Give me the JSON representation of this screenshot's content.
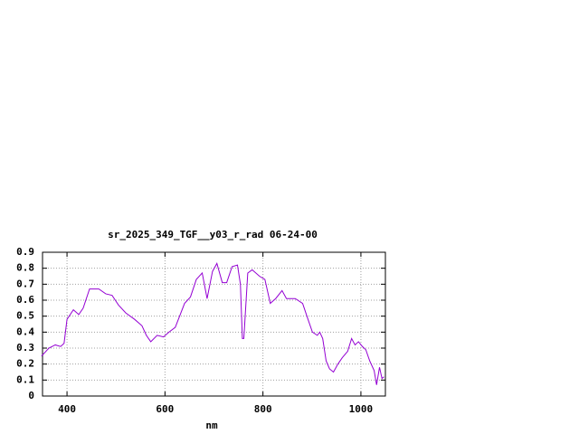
{
  "chart_data": {
    "type": "line",
    "title": "sr_2025_349_TGF__y03_r_rad 06-24-00",
    "x_label": "nm",
    "x": [
      348,
      363,
      376,
      387,
      394,
      400,
      413,
      424,
      433,
      446,
      465,
      479,
      492,
      505,
      520,
      538,
      553,
      562,
      571,
      584,
      597,
      608,
      621,
      640,
      652,
      664,
      676,
      686,
      697,
      706,
      717,
      726,
      737,
      748,
      754,
      758,
      761,
      769,
      778,
      793,
      804,
      815,
      826,
      839,
      848,
      866,
      881,
      892,
      901,
      911,
      916,
      922,
      929,
      936,
      944,
      953,
      962,
      973,
      981,
      988,
      995,
      1003,
      1010,
      1018,
      1027,
      1032,
      1038,
      1043,
      1047
    ],
    "series": [
      {
        "color": "#9400d3",
        "values": [
          0.25,
          0.3,
          0.32,
          0.31,
          0.33,
          0.48,
          0.54,
          0.51,
          0.55,
          0.67,
          0.67,
          0.64,
          0.63,
          0.57,
          0.52,
          0.48,
          0.44,
          0.38,
          0.34,
          0.38,
          0.37,
          0.4,
          0.43,
          0.58,
          0.62,
          0.73,
          0.77,
          0.61,
          0.78,
          0.83,
          0.71,
          0.71,
          0.81,
          0.82,
          0.7,
          0.36,
          0.36,
          0.77,
          0.79,
          0.75,
          0.73,
          0.58,
          0.61,
          0.66,
          0.61,
          0.61,
          0.58,
          0.48,
          0.4,
          0.38,
          0.4,
          0.36,
          0.22,
          0.17,
          0.15,
          0.2,
          0.24,
          0.28,
          0.36,
          0.32,
          0.34,
          0.31,
          0.29,
          0.22,
          0.16,
          0.07,
          0.18,
          0.11,
          0.12
        ]
      }
    ],
    "xlim": [
      350,
      1050
    ],
    "xticks": [
      400,
      600,
      800,
      1000
    ],
    "ylim": [
      0,
      0.9
    ],
    "yticks": [
      0,
      0.1,
      0.2,
      0.3,
      0.4,
      0.5,
      0.6,
      0.7,
      0.8,
      0.9
    ],
    "grid": true
  }
}
